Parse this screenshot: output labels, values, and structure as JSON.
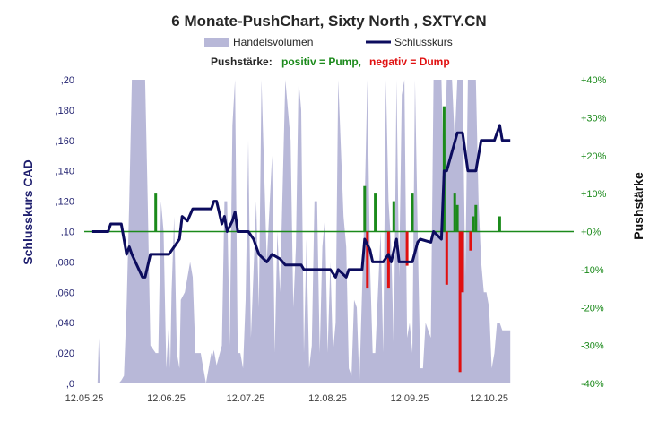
{
  "title": "6 Monate-PushChart,  Sixty North , SXTY.CN",
  "legend": [
    {
      "name": "Handelsvolumen",
      "color": "#b8b8d8"
    },
    {
      "name": "Schlusskurs",
      "color": "#0c0c5e"
    }
  ],
  "subtitle": {
    "prefix": "Pushstärke:",
    "positive": "positiv = Pump,",
    "negative": "negativ = Dump",
    "positive_color": "#1b8a1b",
    "negative_color": "#e01010"
  },
  "chart_data": {
    "type": "line",
    "ylabel": "Schlusskurs CAD",
    "y2label": "Pushstärke",
    "ylim": [
      0,
      0.2
    ],
    "y2lim": [
      -40,
      40
    ],
    "yticks": [
      ",20",
      ",180",
      ",160",
      ",140",
      ",120",
      ",10",
      ",080",
      ",060",
      ",040",
      ",020",
      ",0"
    ],
    "y2ticks": [
      "+40%",
      "+30%",
      "+20%",
      "+10%",
      "+0%",
      "-10%",
      "-20%",
      "-30%",
      "-40%"
    ],
    "xticks": [
      "12.05.25",
      "12.06.25",
      "12.07.25",
      "12.08.25",
      "12.09.25",
      "12.10.25"
    ],
    "xtick_days": [
      0,
      31,
      61,
      92,
      123,
      153
    ],
    "x_range_days": [
      0,
      185
    ],
    "colors": {
      "volume": "#b8b8d8",
      "price": "#0c0c5e",
      "zero": "#1b8a1b",
      "pos": "#1b8a1b",
      "neg": "#e01010",
      "left_axis": "#1f1f6e",
      "right_axis": "#1b8a1b"
    },
    "price": {
      "name": "Schlusskurs",
      "points": [
        [
          3,
          0.1
        ],
        [
          9,
          0.1
        ],
        [
          10,
          0.105
        ],
        [
          14,
          0.105
        ],
        [
          15,
          0.095
        ],
        [
          16,
          0.085
        ],
        [
          17,
          0.09
        ],
        [
          18,
          0.085
        ],
        [
          22,
          0.07
        ],
        [
          23,
          0.07
        ],
        [
          25,
          0.085
        ],
        [
          32,
          0.085
        ],
        [
          34,
          0.09
        ],
        [
          36,
          0.095
        ],
        [
          37,
          0.11
        ],
        [
          39,
          0.107
        ],
        [
          41,
          0.115
        ],
        [
          48,
          0.115
        ],
        [
          49,
          0.12
        ],
        [
          50,
          0.12
        ],
        [
          52,
          0.105
        ],
        [
          53,
          0.11
        ],
        [
          54,
          0.1
        ],
        [
          56,
          0.107
        ],
        [
          57,
          0.113
        ],
        [
          58,
          0.1
        ],
        [
          62,
          0.1
        ],
        [
          64,
          0.095
        ],
        [
          66,
          0.085
        ],
        [
          69,
          0.08
        ],
        [
          71,
          0.085
        ],
        [
          74,
          0.082
        ],
        [
          76,
          0.078
        ],
        [
          82,
          0.078
        ],
        [
          83,
          0.075
        ],
        [
          93,
          0.075
        ],
        [
          95,
          0.07
        ],
        [
          96,
          0.075
        ],
        [
          99,
          0.07
        ],
        [
          100,
          0.075
        ],
        [
          105,
          0.075
        ],
        [
          106,
          0.095
        ],
        [
          108,
          0.088
        ],
        [
          109,
          0.08
        ],
        [
          113,
          0.08
        ],
        [
          115,
          0.085
        ],
        [
          116,
          0.08
        ],
        [
          118,
          0.095
        ],
        [
          119,
          0.08
        ],
        [
          124,
          0.08
        ],
        [
          126,
          0.093
        ],
        [
          127,
          0.095
        ],
        [
          131,
          0.093
        ],
        [
          132,
          0.1
        ],
        [
          135,
          0.095
        ],
        [
          136,
          0.14
        ],
        [
          137,
          0.14
        ],
        [
          141,
          0.165
        ],
        [
          143,
          0.165
        ],
        [
          145,
          0.14
        ],
        [
          148,
          0.14
        ],
        [
          150,
          0.16
        ],
        [
          155,
          0.16
        ],
        [
          157,
          0.17
        ],
        [
          158,
          0.16
        ],
        [
          161,
          0.16
        ]
      ]
    },
    "volume": {
      "name": "Handelsvolumen",
      "points": [
        [
          -4,
          0
        ],
        [
          5,
          0
        ],
        [
          5.5,
          0.03
        ],
        [
          6,
          0
        ],
        [
          13,
          0
        ],
        [
          14,
          0.002
        ],
        [
          15,
          0.005
        ],
        [
          16,
          0.05
        ],
        [
          17,
          0.12
        ],
        [
          18,
          0.2
        ],
        [
          23,
          0.2
        ],
        [
          24,
          0.12
        ],
        [
          25,
          0.025
        ],
        [
          27,
          0.02
        ],
        [
          28,
          0.02
        ],
        [
          29,
          0.12
        ],
        [
          30,
          0.1
        ],
        [
          31,
          0.01
        ],
        [
          32,
          0.04
        ],
        [
          32.5,
          0.01
        ],
        [
          33,
          0.06
        ],
        [
          34,
          0.11
        ],
        [
          35,
          0.02
        ],
        [
          36,
          0.01
        ],
        [
          36.5,
          0.055
        ],
        [
          38,
          0.06
        ],
        [
          40,
          0.08
        ],
        [
          41,
          0.07
        ],
        [
          42,
          0.02
        ],
        [
          44,
          0.02
        ],
        [
          45,
          0.01
        ],
        [
          46,
          0
        ],
        [
          48,
          0.02
        ],
        [
          48.5,
          0.018
        ],
        [
          49,
          0.022
        ],
        [
          50,
          0.012
        ],
        [
          52,
          0.025
        ],
        [
          53,
          0.12
        ],
        [
          54,
          0.12
        ],
        [
          55,
          0.025
        ],
        [
          56,
          0.17
        ],
        [
          57,
          0.2
        ],
        [
          58,
          0.02
        ],
        [
          59,
          0.02
        ],
        [
          60,
          0.01
        ],
        [
          61,
          0.055
        ],
        [
          62,
          0.16
        ],
        [
          63,
          0.03
        ],
        [
          64,
          0.075
        ],
        [
          65,
          0.12
        ],
        [
          66,
          0.05
        ],
        [
          67,
          0.2
        ],
        [
          69,
          0.08
        ],
        [
          71,
          0.15
        ],
        [
          72,
          0.02
        ],
        [
          73,
          0.1
        ],
        [
          74,
          0.06
        ],
        [
          76,
          0.2
        ],
        [
          78,
          0.16
        ],
        [
          79,
          0.05
        ],
        [
          80,
          0.09
        ],
        [
          81,
          0.2
        ],
        [
          82,
          0.18
        ],
        [
          83,
          0.02
        ],
        [
          84,
          0.095
        ],
        [
          85,
          0.01
        ],
        [
          86,
          0.025
        ],
        [
          87,
          0.12
        ],
        [
          88,
          0.12
        ],
        [
          89,
          0.02
        ],
        [
          90,
          0.09
        ],
        [
          91,
          0.11
        ],
        [
          92,
          0.02
        ],
        [
          93,
          0.08
        ],
        [
          94,
          0.02
        ],
        [
          95,
          0.04
        ],
        [
          96,
          0.2
        ],
        [
          98,
          0.11
        ],
        [
          99,
          0.09
        ],
        [
          100,
          0.01
        ],
        [
          101,
          0.005
        ],
        [
          102,
          0.055
        ],
        [
          103,
          0.05
        ],
        [
          104,
          0
        ],
        [
          106,
          0.12
        ],
        [
          107,
          0.2
        ],
        [
          108,
          0.08
        ],
        [
          109,
          0.02
        ],
        [
          110,
          0.02
        ],
        [
          111,
          0.06
        ],
        [
          112,
          0.1
        ],
        [
          113,
          0.02
        ],
        [
          114,
          0.2
        ],
        [
          115,
          0.12
        ],
        [
          116,
          0.09
        ],
        [
          117,
          0.02
        ],
        [
          118,
          0.2
        ],
        [
          119,
          0.07
        ],
        [
          120,
          0.19
        ],
        [
          121,
          0.2
        ],
        [
          122,
          0.03
        ],
        [
          123,
          0.04
        ],
        [
          124,
          0.02
        ],
        [
          125,
          0.2
        ],
        [
          126,
          0.1
        ],
        [
          127,
          0.01
        ],
        [
          128,
          0.01
        ],
        [
          129,
          0.04
        ],
        [
          131,
          0.03
        ],
        [
          132,
          0.2
        ],
        [
          135,
          0.2
        ],
        [
          136,
          0.13
        ],
        [
          137,
          0.2
        ],
        [
          139,
          0.2
        ],
        [
          140,
          0.16
        ],
        [
          141,
          0.2
        ],
        [
          143,
          0.2
        ],
        [
          144,
          0.07
        ],
        [
          145,
          0.2
        ],
        [
          148,
          0.2
        ],
        [
          149,
          0.12
        ],
        [
          150,
          0.08
        ],
        [
          151,
          0.06
        ],
        [
          152,
          0.06
        ],
        [
          153,
          0.05
        ],
        [
          154,
          0.01
        ],
        [
          155,
          0.02
        ],
        [
          156,
          0.04
        ],
        [
          157,
          0.04
        ],
        [
          158,
          0.035
        ],
        [
          161,
          0.035
        ],
        [
          161,
          0
        ]
      ]
    },
    "push": {
      "name": "Pushstärke",
      "bars": [
        [
          27,
          10
        ],
        [
          106,
          12
        ],
        [
          107,
          -15
        ],
        [
          110,
          10
        ],
        [
          115,
          -15
        ],
        [
          117,
          8
        ],
        [
          122,
          -9
        ],
        [
          124,
          10
        ],
        [
          136,
          33
        ],
        [
          137,
          -14
        ],
        [
          140,
          10
        ],
        [
          141,
          7
        ],
        [
          142,
          -37
        ],
        [
          143,
          -16
        ],
        [
          146,
          -5
        ],
        [
          147,
          4
        ],
        [
          148,
          7
        ],
        [
          157,
          4
        ]
      ]
    }
  }
}
